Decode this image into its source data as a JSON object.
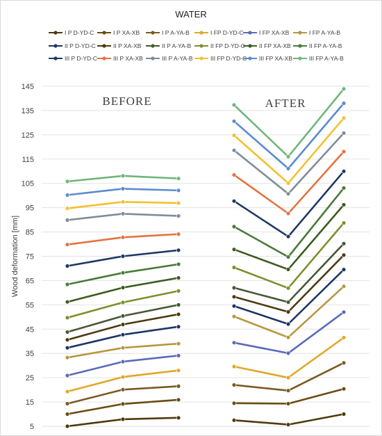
{
  "chart_data": {
    "type": "line",
    "title": "WATER",
    "ylabel": "Wood deformation [mm]",
    "xlabel": "",
    "ylim": [
      5,
      145
    ],
    "yticks": [
      5,
      15,
      25,
      35,
      45,
      55,
      65,
      75,
      85,
      95,
      105,
      115,
      125,
      135,
      145
    ],
    "grid": true,
    "legend_position": "top",
    "annotations": [
      "BEFORE",
      "AFTER"
    ],
    "series": [
      {
        "name": "I P D-YD-C",
        "color": "#4E3B0D",
        "before": [
          5.0,
          7.9,
          8.5
        ],
        "after": [
          7.5,
          5.7,
          10.0
        ]
      },
      {
        "name": "I P XA-XB",
        "color": "#6A4C12",
        "before": [
          10.0,
          14.2,
          15.9
        ],
        "after": [
          14.5,
          14.3,
          20.4
        ]
      },
      {
        "name": "I P A-YA-B",
        "color": "#7A5A22",
        "before": [
          14.3,
          20.1,
          21.5
        ],
        "after": [
          22.0,
          19.7,
          31.1
        ]
      },
      {
        "name": "I FP D-YD-C",
        "color": "#E0A72A",
        "before": [
          19.3,
          25.3,
          28.0
        ],
        "after": [
          29.6,
          25.0,
          41.5
        ]
      },
      {
        "name": "I FP XA-XB",
        "color": "#5B6AB8",
        "before": [
          25.9,
          31.6,
          34.1
        ],
        "after": [
          39.4,
          35.1,
          52.0
        ]
      },
      {
        "name": "I FP A-YA-B",
        "color": "#B8963E",
        "before": [
          33.3,
          37.3,
          39.0
        ],
        "after": [
          50.2,
          41.6,
          62.6
        ]
      },
      {
        "name": "II P D-YD-C",
        "color": "#1F3566",
        "before": [
          37.3,
          42.7,
          46.0
        ],
        "after": [
          54.5,
          47.1,
          69.5
        ]
      },
      {
        "name": "II P XA-XB",
        "color": "#4B3A0F",
        "before": [
          40.6,
          46.9,
          51.1
        ],
        "after": [
          58.3,
          52.1,
          75.5
        ]
      },
      {
        "name": "II P A-YA-B",
        "color": "#465835",
        "before": [
          43.8,
          50.4,
          55.0
        ],
        "after": [
          62.0,
          56.1,
          80.2
        ]
      },
      {
        "name": "II FP D-YD-C",
        "color": "#7F8F2E",
        "before": [
          49.7,
          56.0,
          60.7
        ],
        "after": [
          70.4,
          61.9,
          88.7
        ]
      },
      {
        "name": "II FP XA-XB",
        "color": "#3D5C1F",
        "before": [
          56.2,
          62.1,
          66.1
        ],
        "after": [
          77.8,
          69.6,
          96.2
        ]
      },
      {
        "name": "II FP A-YA-B",
        "color": "#4A7A3A",
        "before": [
          63.4,
          68.2,
          71.7
        ],
        "after": [
          87.2,
          74.7,
          103.1
        ]
      },
      {
        "name": "III P D-YD-C",
        "color": "#1F3864",
        "before": [
          71.0,
          75.0,
          77.5
        ],
        "after": [
          97.7,
          83.1,
          110.0
        ]
      },
      {
        "name": "III P XA-XB",
        "color": "#E4733F",
        "before": [
          79.8,
          82.8,
          84.1
        ],
        "after": [
          108.5,
          92.6,
          118.1
        ]
      },
      {
        "name": "III P A-YA-B",
        "color": "#7F8C99",
        "before": [
          89.9,
          92.5,
          91.6
        ],
        "after": [
          118.6,
          100.7,
          125.7
        ]
      },
      {
        "name": "III FP D-YD-C",
        "color": "#F2C12E",
        "before": [
          94.7,
          97.4,
          96.9
        ],
        "after": [
          124.8,
          105.1,
          131.9
        ]
      },
      {
        "name": "III FP XA-XB",
        "color": "#5B8BD0",
        "before": [
          100.2,
          102.8,
          102.1
        ],
        "after": [
          130.6,
          111.1,
          138.0
        ]
      },
      {
        "name": "III FP A-YA-B",
        "color": "#6FB67A",
        "before": [
          105.8,
          108.1,
          107.0
        ],
        "after": [
          137.3,
          116.0,
          143.9
        ]
      }
    ]
  }
}
